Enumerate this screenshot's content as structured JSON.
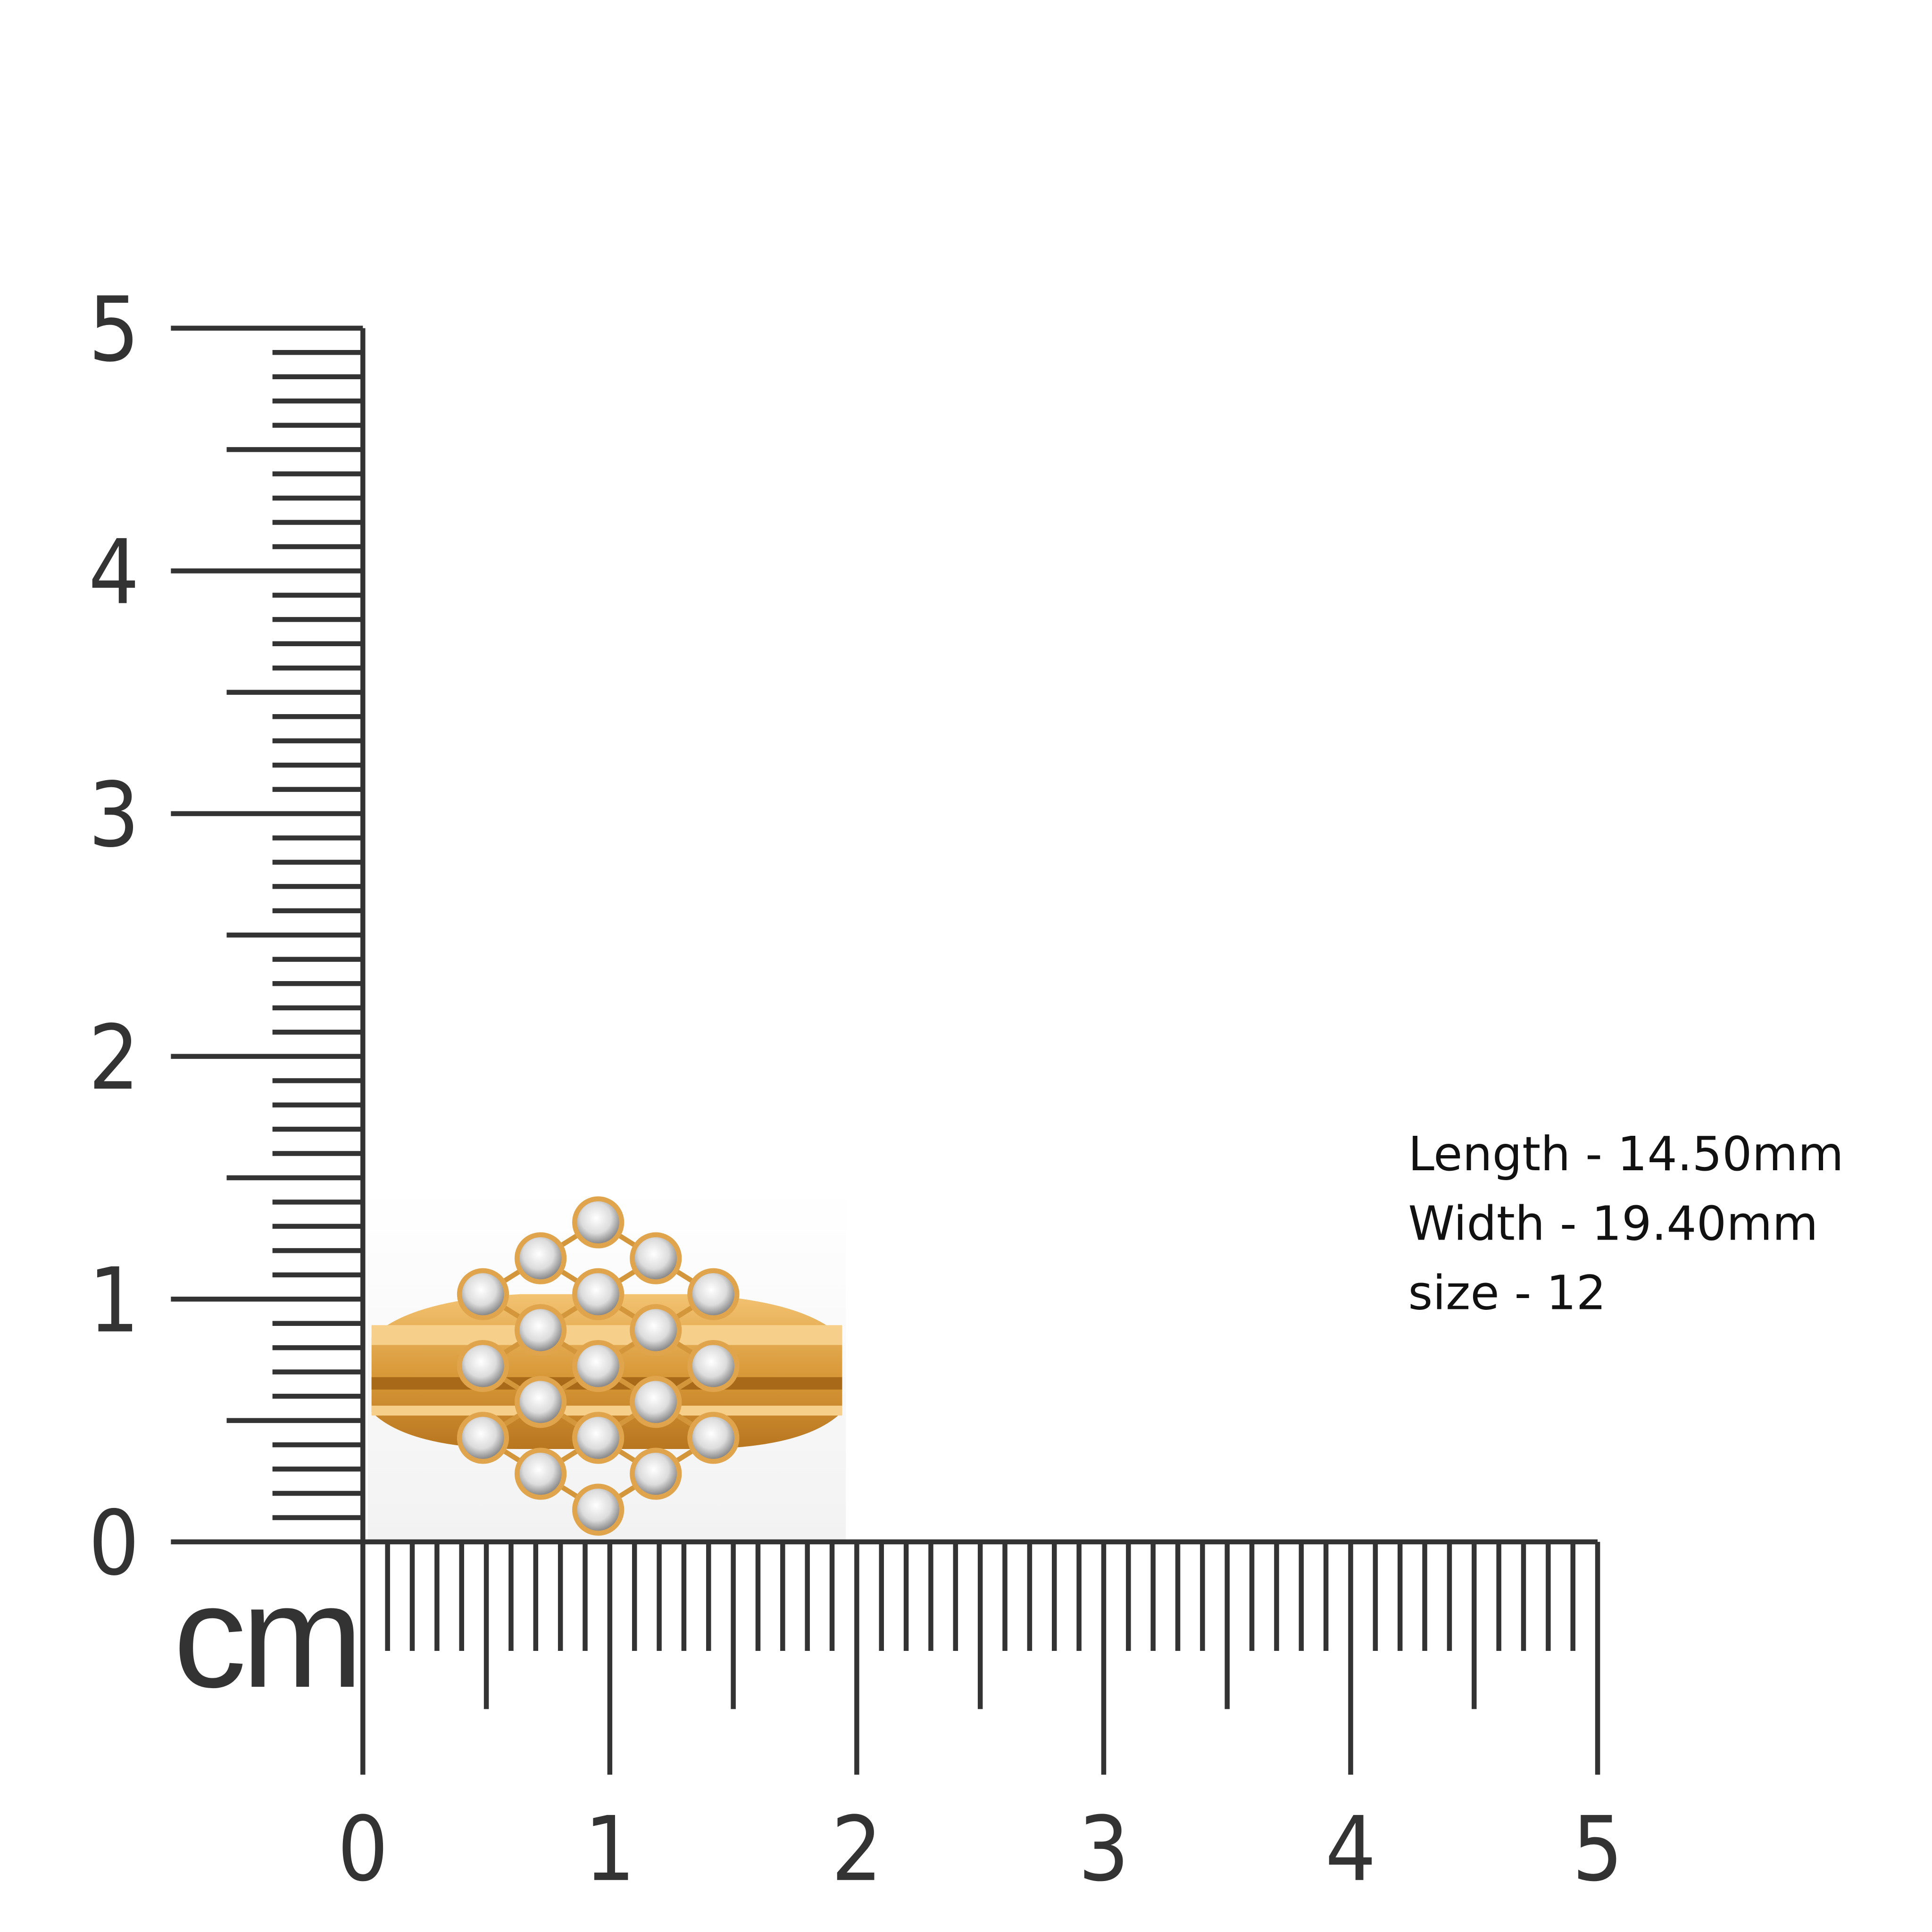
{
  "ruler": {
    "unit": "cm",
    "vertical_labels": [
      "0",
      "1",
      "2",
      "3",
      "4",
      "5"
    ],
    "horizontal_labels": [
      "0",
      "1",
      "2",
      "3",
      "4",
      "5"
    ]
  },
  "specs": [
    "Length - 14.50mm",
    "Width - 19.40mm",
    "size - 12"
  ]
}
